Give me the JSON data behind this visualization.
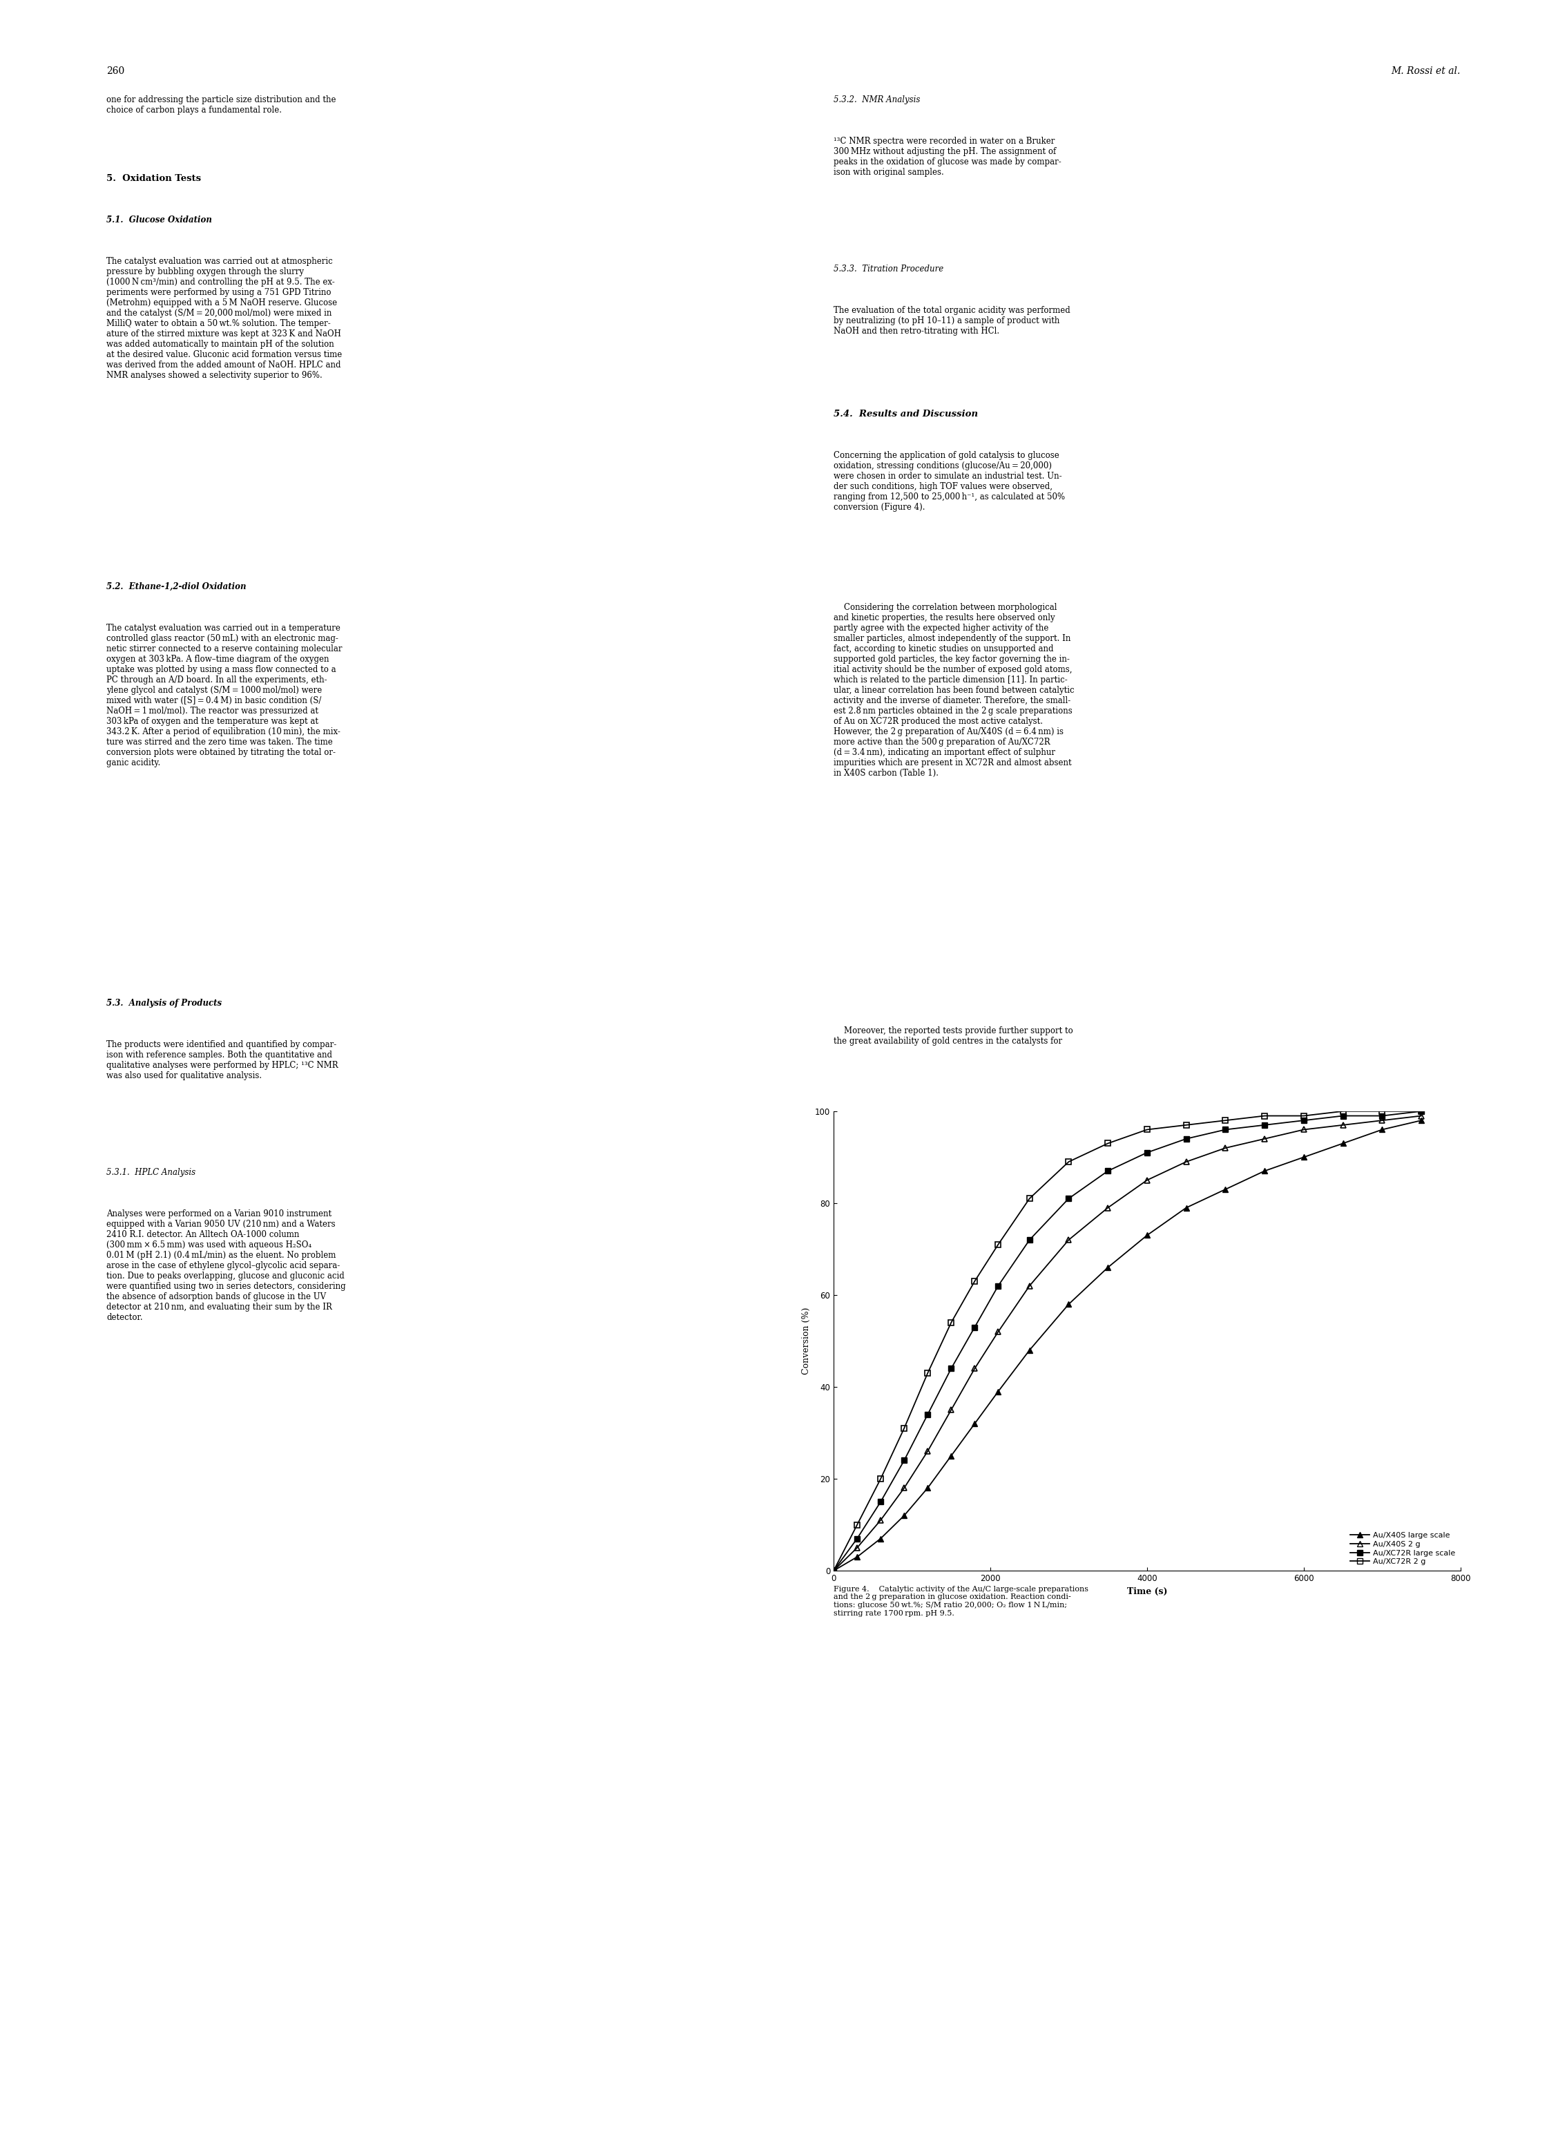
{
  "xlabel": "Time (s)",
  "ylabel": "Conversion (%)",
  "xlim": [
    0,
    8000
  ],
  "ylim": [
    0,
    100
  ],
  "xticks": [
    0,
    2000,
    4000,
    6000,
    8000
  ],
  "yticks": [
    0,
    20,
    40,
    60,
    80,
    100
  ],
  "series": [
    {
      "label": "Au/X40S large scale",
      "marker": "^",
      "marker_filled": true,
      "x": [
        0,
        300,
        600,
        900,
        1200,
        1500,
        1800,
        2100,
        2500,
        3000,
        3500,
        4000,
        4500,
        5000,
        5500,
        6000,
        6500,
        7000,
        7500
      ],
      "y": [
        0,
        3,
        7,
        12,
        18,
        25,
        32,
        39,
        48,
        58,
        66,
        73,
        79,
        83,
        87,
        90,
        93,
        96,
        98
      ]
    },
    {
      "label": "Au/X40S 2 g",
      "marker": "^",
      "marker_filled": false,
      "x": [
        0,
        300,
        600,
        900,
        1200,
        1500,
        1800,
        2100,
        2500,
        3000,
        3500,
        4000,
        4500,
        5000,
        5500,
        6000,
        6500,
        7000,
        7500
      ],
      "y": [
        0,
        5,
        11,
        18,
        26,
        35,
        44,
        52,
        62,
        72,
        79,
        85,
        89,
        92,
        94,
        96,
        97,
        98,
        99
      ]
    },
    {
      "label": "Au/XC72R large scale",
      "marker": "s",
      "marker_filled": true,
      "x": [
        0,
        300,
        600,
        900,
        1200,
        1500,
        1800,
        2100,
        2500,
        3000,
        3500,
        4000,
        4500,
        5000,
        5500,
        6000,
        6500,
        7000,
        7500
      ],
      "y": [
        0,
        7,
        15,
        24,
        34,
        44,
        53,
        62,
        72,
        81,
        87,
        91,
        94,
        96,
        97,
        98,
        99,
        99,
        100
      ]
    },
    {
      "label": "Au/XC72R 2 g",
      "marker": "s",
      "marker_filled": false,
      "x": [
        0,
        300,
        600,
        900,
        1200,
        1500,
        1800,
        2100,
        2500,
        3000,
        3500,
        4000,
        4500,
        5000,
        5500,
        6000,
        6500,
        7000,
        7500
      ],
      "y": [
        0,
        10,
        20,
        31,
        43,
        54,
        63,
        71,
        81,
        89,
        93,
        96,
        97,
        98,
        99,
        99,
        100,
        100,
        100
      ]
    }
  ],
  "page_number": "260",
  "header_right": "M. Rossi et al."
}
